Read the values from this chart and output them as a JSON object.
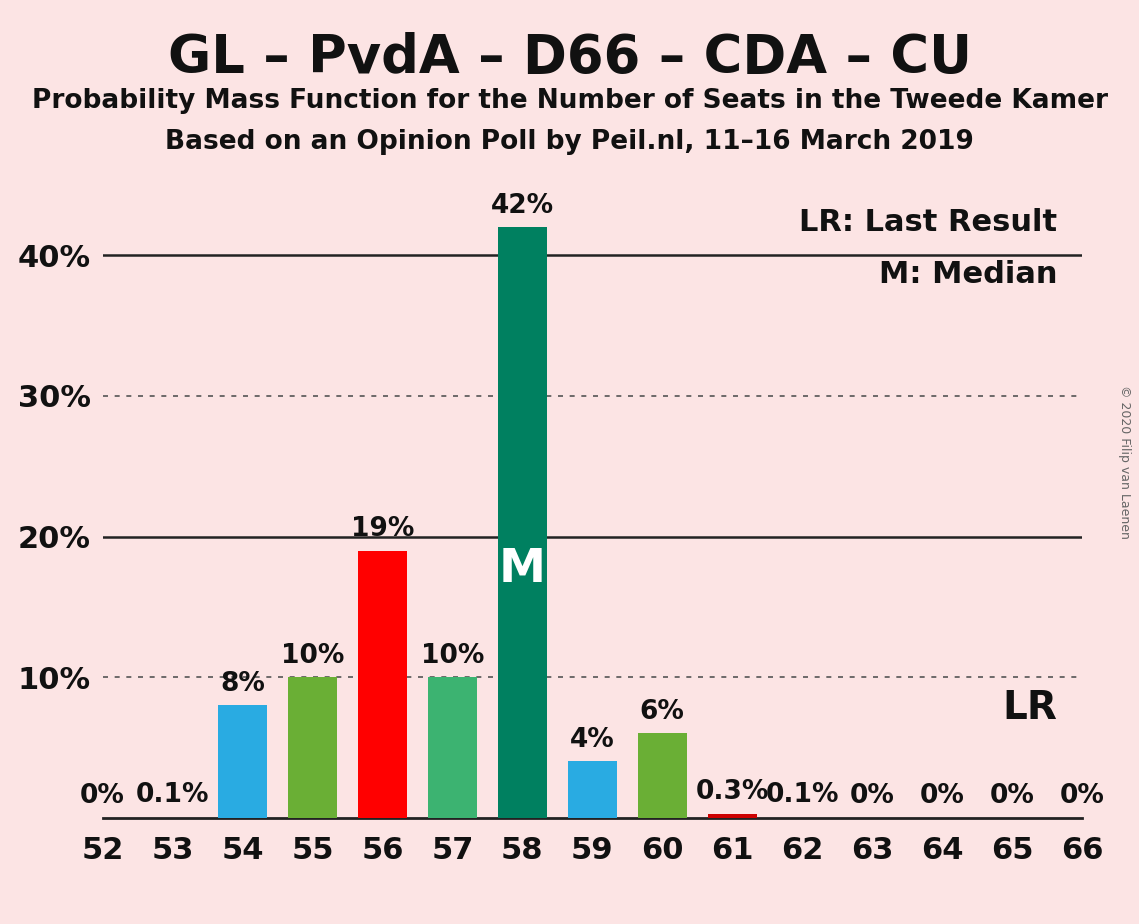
{
  "title": "GL – PvdA – D66 – CDA – CU",
  "subtitle1": "Probability Mass Function for the Number of Seats in the Tweede Kamer",
  "subtitle2": "Based on an Opinion Poll by Peil.nl, 11–16 March 2019",
  "copyright": "© 2020 Filip van Laenen",
  "background_color": "#fce4e4",
  "seats": [
    52,
    53,
    54,
    55,
    56,
    57,
    58,
    59,
    60,
    61,
    62,
    63,
    64,
    65,
    66
  ],
  "probabilities": [
    0.0,
    0.1,
    8.0,
    10.0,
    19.0,
    10.0,
    42.0,
    4.0,
    6.0,
    0.3,
    0.1,
    0.0,
    0.0,
    0.0,
    0.0
  ],
  "bar_colors": [
    "none",
    "none",
    "#29ABE2",
    "#6AAF35",
    "#FF0000",
    "#3CB371",
    "#008060",
    "#29ABE2",
    "#6AAF35",
    "#CC0000",
    "none",
    "none",
    "none",
    "none",
    "none"
  ],
  "median_seat": 58,
  "last_result_seat": 61,
  "ylim": [
    0,
    46
  ],
  "dotted_lines": [
    10,
    30
  ],
  "solid_lines": [
    20,
    40
  ],
  "legend_lr": "LR: Last Result",
  "legend_m": "M: Median",
  "lr_label": "LR",
  "bar_width": 0.7,
  "title_fontsize": 38,
  "subtitle_fontsize": 19,
  "tick_fontsize": 22,
  "bar_label_fontsize": 19,
  "legend_fontsize": 22,
  "median_label": "M",
  "ytick_vals": [
    0,
    10,
    20,
    30,
    40
  ],
  "ytick_labels": [
    "",
    "10%",
    "20%",
    "30%",
    "40%"
  ]
}
